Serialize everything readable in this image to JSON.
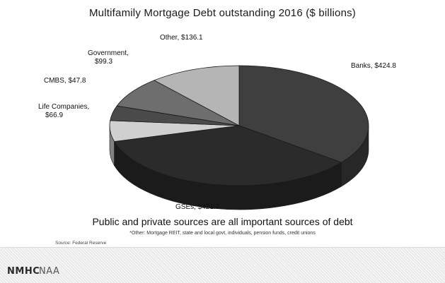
{
  "slide": {
    "footnote": "*Other: Mortgage REIT, state and local govt, individuals, pension funds, credit unions",
    "source": "Source: Federal Reserve",
    "subtitle": "Public and private sources are all important sources of debt",
    "logos": [
      "NMHC",
      "NAA"
    ]
  },
  "chart_data": {
    "type": "pie",
    "title": "Multifamily Mortgage Debt outstanding 2016 ($ billions)",
    "slices": [
      {
        "label": "Banks, $424.8",
        "name": "Banks",
        "value": 424.8,
        "color": "#3f3f3f"
      },
      {
        "label": "GSEs, $421.7",
        "name": "GSEs",
        "value": 421.7,
        "color": "#2b2b2b"
      },
      {
        "label": "Life Companies, $66.9",
        "name": "Life Companies",
        "value": 66.9,
        "color": "#d0d0d0"
      },
      {
        "label": "CMBS, $47.8",
        "name": "CMBS",
        "value": 47.8,
        "color": "#4a4a4a"
      },
      {
        "label": "Government, $99.3",
        "name": "Government",
        "value": 99.3,
        "color": "#6e6e6e"
      },
      {
        "label": "Other, $136.1",
        "name": "Other",
        "value": 136.1,
        "color": "#b5b5b5"
      }
    ]
  }
}
